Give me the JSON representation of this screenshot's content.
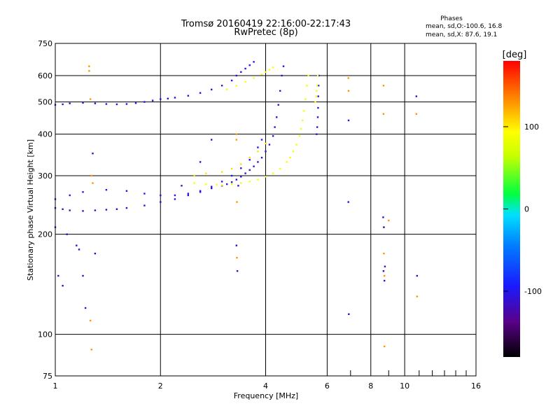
{
  "chart_data": {
    "type": "scatter",
    "title": "Tromsø 20160419 22:16:00-22:17:43",
    "subtitle": "RwPretec (8p)",
    "xlabel": "Frequency [MHz]",
    "ylabel": "Stationary phase Virtual Height [km]",
    "x_scale": "log",
    "y_scale": "log",
    "xlim": [
      1,
      16
    ],
    "ylim": [
      75,
      750
    ],
    "x_ticks": [
      1,
      2,
      4,
      6,
      8,
      10,
      16
    ],
    "x_tick_labels": [
      "1",
      "2",
      "4",
      "6",
      "8",
      "10",
      "16"
    ],
    "y_ticks": [
      75,
      100,
      200,
      300,
      400,
      500,
      600,
      750
    ],
    "y_tick_labels": [
      "75",
      "100",
      "200",
      "300",
      "400",
      "500",
      "600",
      "750"
    ],
    "grid": true,
    "colorbar": {
      "label": "[deg]",
      "range": [
        -180,
        180
      ],
      "ticks": [
        -100,
        0,
        100
      ],
      "tick_labels": [
        "-100",
        "0",
        "100"
      ]
    },
    "phases": {
      "heading": "Phases",
      "stat_O": "mean, sd,O:-100.6, 16.8",
      "stat_X": "mean, sd,X:  87.6, 19.1"
    },
    "series": [
      {
        "kind": "O-trace lower (E/F1)",
        "phase": -110,
        "x": [
          1.0,
          1.05,
          1.1,
          1.2,
          1.3,
          1.4,
          1.5,
          1.6,
          1.8,
          2.0,
          2.2,
          2.4,
          2.6,
          2.8,
          3.0,
          3.1,
          3.2,
          3.3,
          3.4,
          3.5,
          3.6,
          3.7,
          3.8,
          3.9,
          4.0,
          4.1,
          4.2,
          4.25,
          4.3,
          4.35,
          4.4,
          4.45,
          4.5
        ],
        "y": [
          240,
          238,
          236,
          235,
          236,
          237,
          238,
          240,
          244,
          250,
          255,
          262,
          268,
          275,
          280,
          283,
          287,
          292,
          298,
          305,
          312,
          320,
          330,
          340,
          355,
          372,
          395,
          420,
          450,
          490,
          540,
          600,
          640
        ]
      },
      {
        "kind": "O-trace upper (F2 low)",
        "phase": -100,
        "x": [
          1.0,
          1.1,
          1.2,
          1.4,
          1.6,
          1.8,
          2.0,
          2.2,
          2.4,
          2.6,
          2.8,
          3.0,
          3.2,
          3.4,
          3.6,
          3.8,
          3.9
        ],
        "y": [
          255,
          262,
          268,
          272,
          270,
          265,
          262,
          262,
          265,
          270,
          278,
          288,
          300,
          316,
          335,
          365,
          385
        ]
      },
      {
        "kind": "O-trace (F2 high)",
        "phase": -105,
        "x": [
          1.0,
          1.05,
          1.1,
          1.2,
          1.3,
          1.4,
          1.5,
          1.6,
          1.7,
          1.8,
          1.9,
          2.0,
          2.1,
          2.2,
          2.4,
          2.6,
          2.8,
          3.0,
          3.2,
          3.3,
          3.4,
          3.5,
          3.6,
          3.7
        ],
        "y": [
          490,
          492,
          495,
          497,
          495,
          493,
          492,
          493,
          496,
          500,
          505,
          510,
          512,
          515,
          522,
          532,
          545,
          560,
          580,
          600,
          615,
          630,
          645,
          660
        ]
      },
      {
        "kind": "X-trace lower",
        "phase": 90,
        "x": [
          2.5,
          2.7,
          2.9,
          3.0,
          3.2,
          3.4,
          3.6,
          3.8,
          4.0,
          4.2,
          4.4,
          4.6,
          4.7,
          4.8,
          4.9,
          5.0,
          5.05,
          5.1,
          5.15,
          5.2,
          5.25,
          5.3
        ],
        "y": [
          285,
          283,
          282,
          281,
          283,
          285,
          288,
          292,
          298,
          305,
          315,
          330,
          340,
          355,
          372,
          395,
          415,
          440,
          470,
          510,
          560,
          600
        ]
      },
      {
        "kind": "X-trace upper",
        "phase": 105,
        "x": [
          2.5,
          2.7,
          3.0,
          3.2,
          3.4,
          3.6,
          3.8,
          4.0
        ],
        "y": [
          300,
          305,
          308,
          315,
          325,
          340,
          355,
          375
        ]
      },
      {
        "kind": "X-trace (F2 high)",
        "phase": 95,
        "x": [
          3.1,
          3.3,
          3.5,
          3.7,
          3.9,
          4.0,
          4.1,
          4.2
        ],
        "y": [
          545,
          560,
          575,
          590,
          605,
          615,
          625,
          635
        ]
      },
      {
        "kind": "O-trace near foF2 (vertical)",
        "phase": -105,
        "x": [
          5.6,
          5.62,
          5.64,
          5.65,
          5.66,
          5.67,
          5.68
        ],
        "y": [
          400,
          420,
          450,
          480,
          520,
          560,
          600
        ]
      },
      {
        "kind": "X-trace near fxF2 (vertical)",
        "phase": 95,
        "x": [
          5.55,
          5.58,
          5.6,
          5.62,
          5.64
        ],
        "y": [
          500,
          520,
          540,
          560,
          600
        ]
      },
      {
        "kind": "scatter noise",
        "phase": 130,
        "x": [
          1.25,
          1.25,
          1.26,
          1.26,
          1.27,
          1.27,
          1.28,
          3.3,
          3.3,
          3.31,
          3.31,
          8.7,
          8.7,
          8.72,
          8.72,
          8.75,
          8.75,
          9.0,
          6.9,
          6.91,
          10.8,
          10.85
        ],
        "y": [
          640,
          620,
          510,
          110,
          90,
          300,
          285,
          400,
          385,
          250,
          170,
          560,
          460,
          210,
          175,
          150,
          92,
          220,
          590,
          540,
          460,
          130
        ]
      },
      {
        "kind": "scatter noise",
        "phase": -115,
        "x": [
          1.0,
          1.02,
          1.05,
          1.08,
          1.15,
          1.17,
          1.2,
          1.22,
          1.28,
          1.3,
          3.3,
          3.32,
          3.34,
          6.9,
          6.91,
          6.92,
          8.68,
          8.7,
          8.72,
          8.75,
          8.78,
          10.8,
          10.85,
          2.8,
          2.6,
          2.3
        ],
        "y": [
          210,
          150,
          140,
          200,
          185,
          180,
          150,
          120,
          350,
          175,
          185,
          155,
          280,
          250,
          440,
          115,
          225,
          155,
          210,
          145,
          160,
          520,
          150,
          385,
          330,
          280
        ]
      }
    ]
  }
}
